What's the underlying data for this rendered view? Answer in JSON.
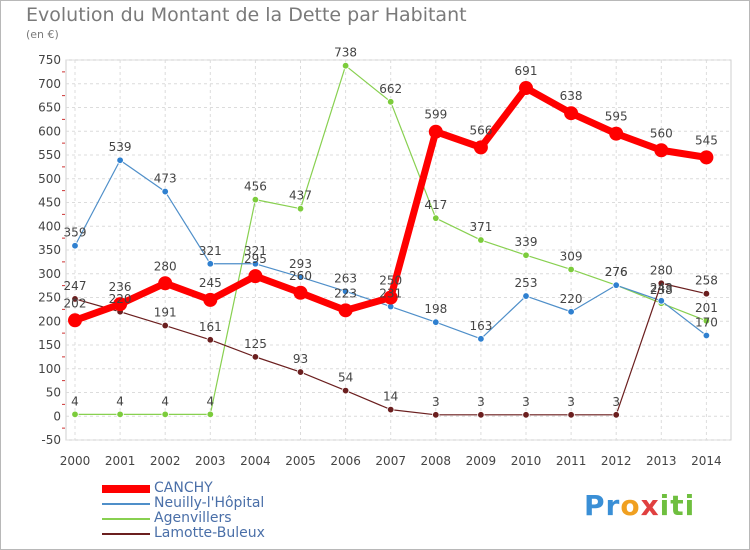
{
  "title": "Evolution du Montant de la Dette par Habitant",
  "unit": "(en €)",
  "logo": {
    "letters": [
      "P",
      "r",
      "o",
      "x",
      "i",
      "t",
      "i"
    ],
    "colors": [
      "#3a8fd6",
      "#3a8fd6",
      "#f0a020",
      "#e04040",
      "#6fbf3f",
      "#6fbf3f",
      "#6fbf3f"
    ]
  },
  "chart_data": {
    "type": "line",
    "title": "Evolution du Montant de la Dette par Habitant",
    "ylabel": "(en €)",
    "xlabel": "",
    "x": [
      "2000",
      "2001",
      "2002",
      "2003",
      "2004",
      "2005",
      "2006",
      "2007",
      "2008",
      "2009",
      "2010",
      "2011",
      "2012",
      "2013",
      "2014"
    ],
    "ylim": [
      -50,
      750
    ],
    "yticks": [
      -50,
      0,
      50,
      100,
      150,
      200,
      250,
      300,
      350,
      400,
      450,
      500,
      550,
      600,
      650,
      700,
      750
    ],
    "grid": true,
    "legend_position": "bottom-left",
    "series": [
      {
        "name": "CANCHY",
        "color": "#ff0000",
        "values": [
          202,
          236,
          280,
          245,
          295,
          260,
          223,
          250,
          599,
          566,
          691,
          638,
          595,
          560,
          545
        ],
        "labels": [
          "202",
          "236",
          "280",
          "245",
          "295",
          "260",
          "223",
          "250",
          "599",
          "566",
          "691",
          "638",
          "595",
          "560",
          "545"
        ]
      },
      {
        "name": "Neuilly-l'Hôpital",
        "color": "#4f8fc9",
        "values": [
          359,
          539,
          473,
          321,
          321,
          293,
          263,
          231,
          198,
          163,
          253,
          220,
          276,
          243,
          170
        ],
        "labels": [
          "359",
          "539",
          "473",
          "321",
          "321",
          "293",
          "263",
          "231",
          "198",
          "163",
          "253",
          "220",
          "276",
          "243",
          "170"
        ]
      },
      {
        "name": "Agenvillers",
        "color": "#88d050",
        "values": [
          4,
          4,
          4,
          4,
          456,
          437,
          738,
          662,
          417,
          371,
          339,
          309,
          276,
          238,
          201
        ],
        "labels": [
          "4",
          "4",
          "4",
          "4",
          "456",
          "437",
          "738",
          "662",
          "417",
          "371",
          "339",
          "309",
          "276",
          "238",
          "201"
        ]
      },
      {
        "name": "Lamotte-Buleux",
        "color": "#6b1f1f",
        "values": [
          247,
          220,
          191,
          161,
          125,
          93,
          54,
          14,
          3,
          3,
          3,
          3,
          3,
          280,
          258
        ],
        "labels": [
          "247",
          "220",
          "191",
          "161",
          "125",
          "93",
          "54",
          "14",
          "3",
          "3",
          "3",
          "3",
          "3",
          "280",
          "258"
        ]
      }
    ]
  }
}
